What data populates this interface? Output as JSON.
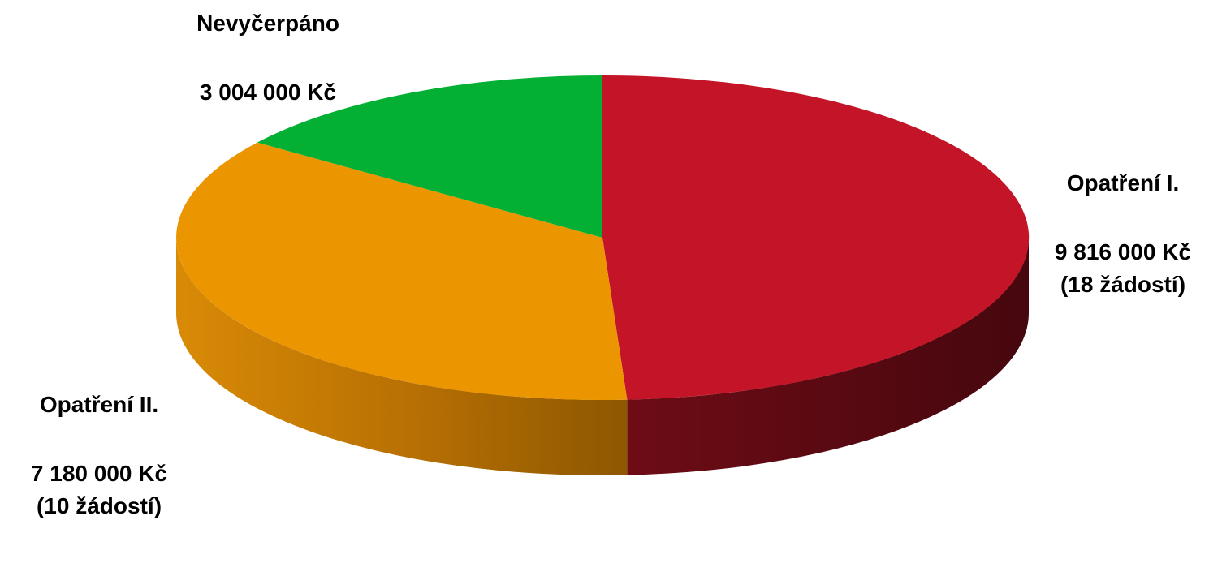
{
  "chart_data": {
    "type": "pie",
    "title": "",
    "categories": [
      "Opatření I.",
      "Opatření II.",
      "Nevyčerpáno"
    ],
    "values": [
      9816000,
      7180000,
      3004000
    ],
    "value_labels": [
      "9 816 000 Kč",
      "7 180 000 Kč",
      "3 004 000 Kč"
    ],
    "notes": [
      "(18 žádostí)",
      "(10 žádostí)",
      ""
    ],
    "colors": [
      "#c41428",
      "#eb9500",
      "#04b033"
    ],
    "style": "3d",
    "legend": "none"
  }
}
